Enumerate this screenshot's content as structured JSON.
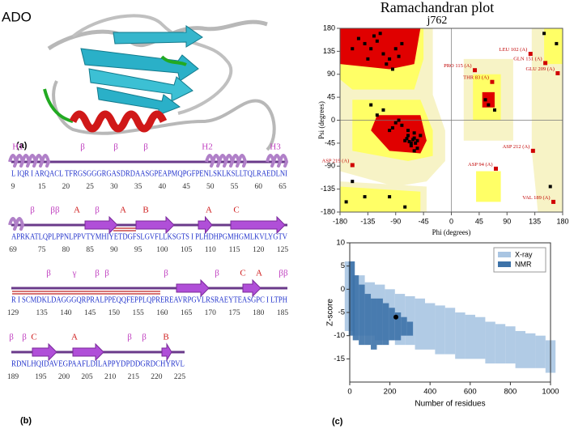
{
  "panel_a": {
    "title": "ADO",
    "label": "(a)"
  },
  "panel_b": {
    "label": "(b)",
    "rows": [
      {
        "sequence": "L IQR I ARQACL TFRGSGGGRGASDRDAASGPEAPMQPGFPENLSKLKSLLTQLRAEDLNI",
        "ticks": [
          9,
          15,
          20,
          25,
          30,
          35,
          40,
          45,
          50,
          55,
          60,
          65
        ],
        "annotations": [
          "H1",
          "β",
          "β",
          "β",
          "H2",
          "H3"
        ]
      },
      {
        "sequence": "APRKATLQPLPPNLPPVTYMHIYETDGFSLGVFLLKSGTS I PLHDHPGMHGMLKVLYGTV",
        "ticks": [
          69,
          75,
          80,
          85,
          90,
          95,
          100,
          105,
          110,
          115,
          120,
          125
        ],
        "annotations": [
          "β",
          "ββ",
          "A",
          "β",
          "A",
          "B",
          "A",
          "C"
        ]
      },
      {
        "sequence": "R I SCMDKLDAGGGQRPRALPPEQQFEPPLQPREREAVRPGVLRSRAEYTEASGPC I LTPH",
        "ticks": [
          129,
          135,
          140,
          145,
          150,
          155,
          160,
          165,
          170,
          175,
          180,
          185
        ],
        "annotations": [
          "β",
          "γ",
          "β",
          "β",
          "β",
          "C",
          "β",
          "A",
          "ββ"
        ]
      },
      {
        "sequence": "RDNLHQIDAVEGPAAFLDILAPPYDPDDGRDCHYRVL",
        "ticks": [
          189,
          195,
          200,
          205,
          210,
          215,
          220,
          225
        ],
        "annotations": [
          "β",
          "β",
          "C",
          "A",
          "β",
          "β",
          "B"
        ]
      }
    ]
  },
  "panel_c": {
    "label": "(c)"
  },
  "chart_data": [
    {
      "type": "scatter",
      "title": "Ramachandran plot",
      "subtitle": "j762",
      "x_label": "Phi (degrees)",
      "y_label": "Psi (degrees)",
      "xlim": [
        -180,
        180
      ],
      "ylim": [
        -180,
        180
      ],
      "xticks": [
        -180,
        -135,
        -90,
        -45,
        0,
        45,
        90,
        135,
        180
      ],
      "yticks": [
        -180,
        -135,
        -90,
        -45,
        0,
        45,
        90,
        135,
        180
      ],
      "color": "#000000",
      "x": [
        -150,
        -140,
        -130,
        -120,
        -110,
        -100,
        -90,
        -80,
        -125,
        -115,
        -105,
        -95,
        -85,
        -135,
        -160,
        -70,
        -75,
        -65,
        -60,
        -55,
        -50,
        -70,
        -80,
        -90,
        -65,
        -60,
        -58,
        -62,
        -68,
        -72,
        -85,
        -95,
        -100,
        -110,
        -60,
        -55,
        -120,
        -130,
        -160,
        -140,
        -75,
        55,
        60,
        70,
        150,
        170,
        160,
        -170,
        -100
      ],
      "y": [
        160,
        150,
        140,
        155,
        130,
        120,
        140,
        150,
        165,
        170,
        110,
        100,
        125,
        120,
        140,
        -30,
        -40,
        -45,
        -35,
        -40,
        -30,
        -20,
        -10,
        -5,
        -50,
        -25,
        -45,
        -38,
        -42,
        -36,
        0,
        -15,
        -20,
        20,
        -60,
        -55,
        10,
        30,
        -120,
        -150,
        -170,
        40,
        30,
        20,
        170,
        150,
        -130,
        -160,
        -150
      ],
      "annotations": [
        {
          "text": "LEU 102 (A)",
          "x": 128,
          "y": 130
        },
        {
          "text": "GLN 151 (A)",
          "x": 152,
          "y": 112
        },
        {
          "text": "GLU 209 (A)",
          "x": 172,
          "y": 92
        },
        {
          "text": "PRO 115 (A)",
          "x": 38,
          "y": 98
        },
        {
          "text": "THR 83 (A)",
          "x": 66,
          "y": 75
        },
        {
          "text": "ASP 212 (A)",
          "x": 132,
          "y": -60
        },
        {
          "text": "ASP 94 (A)",
          "x": 72,
          "y": -95
        },
        {
          "text": "ASP 219 (A)",
          "x": -160,
          "y": -88
        },
        {
          "text": "VAL 189 (A)",
          "x": 165,
          "y": -160
        }
      ]
    },
    {
      "type": "range",
      "x_label": "Number of residues",
      "y_label": "Z-score",
      "xlim": [
        0,
        1000
      ],
      "ylim": [
        -20,
        10
      ],
      "xticks": [
        0,
        200,
        400,
        600,
        800,
        1000
      ],
      "yticks": [
        -15,
        -10,
        -5,
        0,
        5,
        10
      ],
      "legend": "upper-right",
      "series": [
        {
          "name": "X-ray",
          "color": "#a9c5e2",
          "x": [
            0,
            50,
            100,
            150,
            200,
            250,
            300,
            350,
            400,
            450,
            500,
            550,
            600,
            650,
            700,
            750,
            800,
            850,
            900,
            950,
            1000
          ],
          "low": [
            -9,
            -10,
            -10,
            -11,
            -11,
            -12,
            -12,
            -13,
            -13,
            -14,
            -14,
            -15,
            -15,
            -15,
            -16,
            -16,
            -16,
            -17,
            -17,
            -17,
            -18
          ],
          "high": [
            6,
            3,
            1.5,
            1,
            0,
            -1,
            -1.5,
            -2,
            -3,
            -3.5,
            -4,
            -5,
            -5.5,
            -6,
            -7,
            -7.5,
            -8,
            -9,
            -9.5,
            -10,
            -11
          ]
        },
        {
          "name": "NMR",
          "color": "#3d72a8",
          "x": [
            10,
            30,
            60,
            90,
            120,
            150,
            180,
            210,
            240,
            270,
            300
          ],
          "low": [
            -10,
            -11,
            -12,
            -12,
            -13,
            -12,
            -12,
            -11,
            -11,
            -10,
            -10
          ],
          "high": [
            6,
            3,
            1,
            -1,
            -2,
            -2,
            -3,
            -4,
            -5,
            -6,
            -7
          ]
        }
      ],
      "highlight": {
        "x": 230,
        "y": -6
      }
    }
  ]
}
